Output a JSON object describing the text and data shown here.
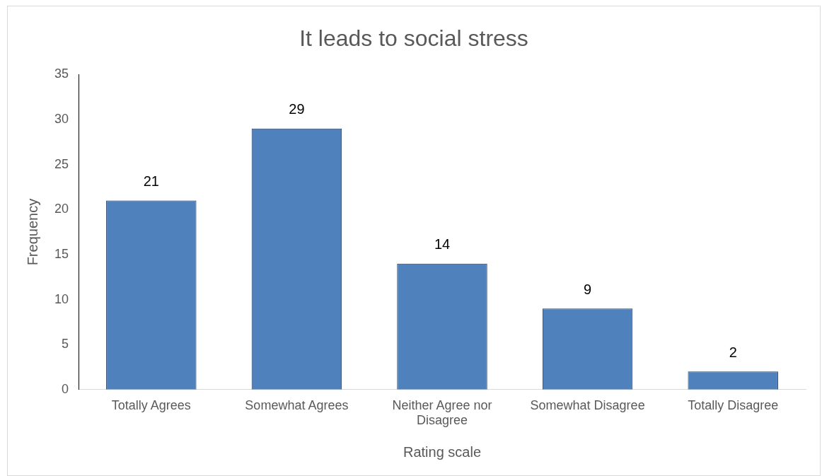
{
  "chart_data": {
    "type": "bar",
    "title": "It leads to social stress",
    "xlabel": "Rating scale",
    "ylabel": "Frequency",
    "categories": [
      "Totally Agrees",
      "Somewhat Agrees",
      "Neither Agree nor Disagree",
      "Somewhat Disagree",
      "Totally Disagree"
    ],
    "values": [
      21,
      29,
      14,
      9,
      2
    ],
    "color": "#4f81bd",
    "ylim": [
      0,
      35
    ],
    "yticks": [
      0,
      5,
      10,
      15,
      20,
      25,
      30,
      35
    ],
    "grid": false,
    "legend": false,
    "data_labels": true
  }
}
